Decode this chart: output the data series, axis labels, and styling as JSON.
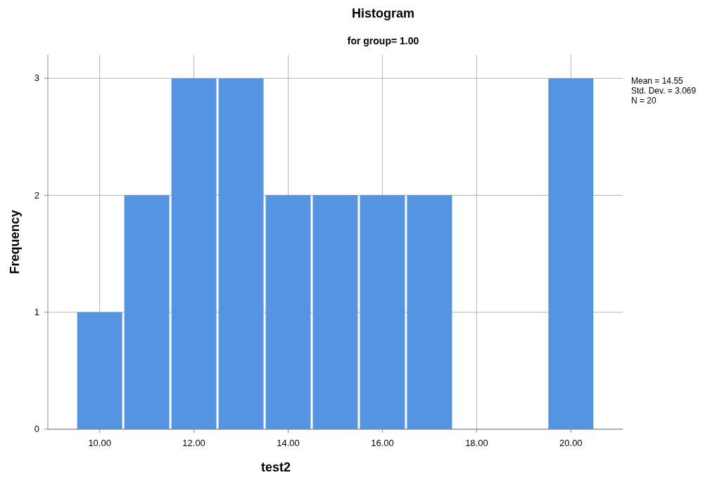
{
  "chart_data": {
    "type": "histogram",
    "title": "Histogram",
    "subtitle": "for group= 1.00",
    "xlabel": "test2",
    "ylabel": "Frequency",
    "bins": [
      9.5,
      10.5,
      11.5,
      12.5,
      13.5,
      14.5,
      15.5,
      16.5,
      17.5,
      18.5,
      19.5,
      20.5
    ],
    "values": [
      1,
      2,
      3,
      3,
      2,
      2,
      2,
      2,
      0,
      0,
      3
    ],
    "color": "#5594e3",
    "xlim": [
      8.9,
      21.1
    ],
    "xticks": [
      {
        "value": 10,
        "label": "10.00"
      },
      {
        "value": 12,
        "label": "12.00"
      },
      {
        "value": 14,
        "label": "14.00"
      },
      {
        "value": 16,
        "label": "16.00"
      },
      {
        "value": 18,
        "label": "18.00"
      },
      {
        "value": 20,
        "label": "20.00"
      }
    ],
    "ylim": [
      0,
      3.2
    ],
    "yticks": [
      0,
      1,
      2,
      3
    ],
    "grid": true,
    "annotations": [
      "Mean = 14.55",
      "Std. Dev. = 3.069",
      "N = 20"
    ]
  }
}
